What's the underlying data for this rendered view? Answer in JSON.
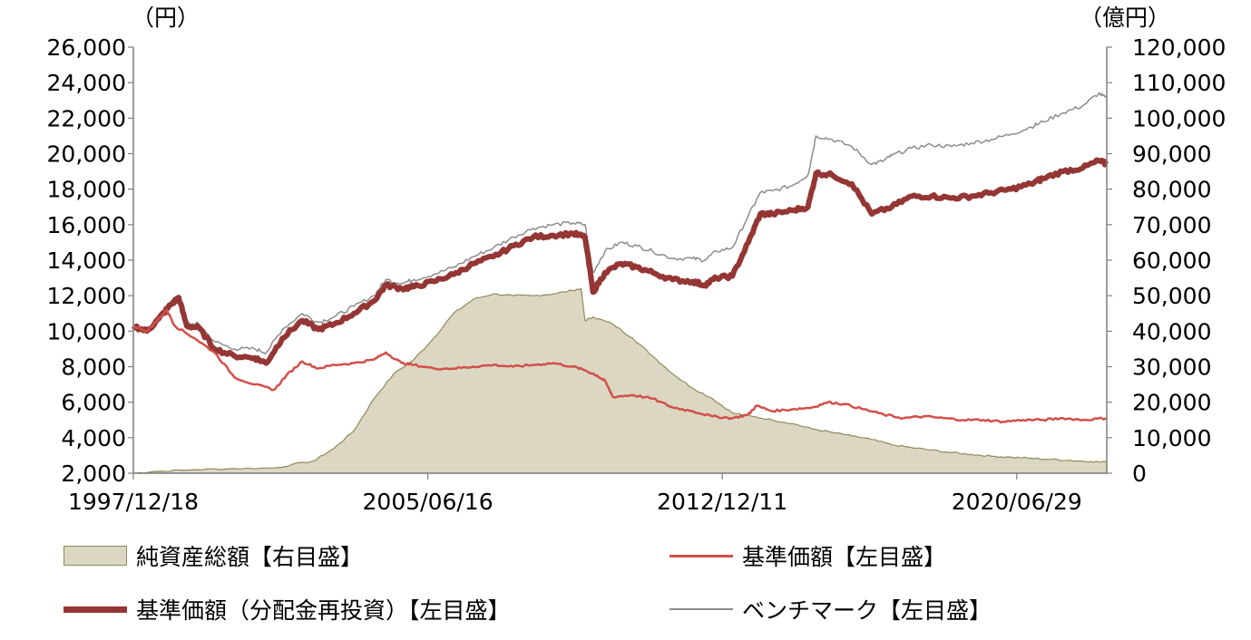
{
  "units": {
    "left": "（円）",
    "right": "（億円）"
  },
  "chart_data": {
    "type": "line",
    "x_tick_labels": [
      "1997/12/18",
      "2005/06/16",
      "2012/12/11",
      "2020/06/29"
    ],
    "y_left": {
      "ticks": [
        "2,000",
        "4,000",
        "6,000",
        "8,000",
        "10,000",
        "12,000",
        "14,000",
        "16,000",
        "18,000",
        "20,000",
        "22,000",
        "24,000",
        "26,000"
      ],
      "ylim": [
        2000,
        26000
      ]
    },
    "y_right": {
      "ticks": [
        "0",
        "10,000",
        "20,000",
        "30,000",
        "40,000",
        "50,000",
        "60,000",
        "70,000",
        "80,000",
        "90,000",
        "100,000",
        "110,000",
        "120,000"
      ],
      "ylim": [
        0,
        120000
      ]
    },
    "grid": false,
    "x_range": [
      1997.96,
      2022.4
    ],
    "series": [
      {
        "name": "純資産総額【右目盛】",
        "kind": "area",
        "axis": "right",
        "color": "#dbd7c2",
        "stroke": "#8f8a5c",
        "points": [
          [
            1997.96,
            0
          ],
          [
            1998.5,
            500
          ],
          [
            1999.5,
            1000
          ],
          [
            2000.5,
            1300
          ],
          [
            2001.5,
            1500
          ],
          [
            2002.5,
            3500
          ],
          [
            2003,
            7000
          ],
          [
            2003.5,
            12000
          ],
          [
            2004,
            21000
          ],
          [
            2004.5,
            28000
          ],
          [
            2005,
            32000
          ],
          [
            2005.5,
            38000
          ],
          [
            2006,
            45000
          ],
          [
            2006.5,
            49000
          ],
          [
            2007,
            50500
          ],
          [
            2007.5,
            50000
          ],
          [
            2008,
            50000
          ],
          [
            2008.5,
            50500
          ],
          [
            2009,
            51500
          ],
          [
            2009.2,
            52000
          ],
          [
            2009.3,
            43000
          ],
          [
            2009.5,
            44000
          ],
          [
            2010,
            42000
          ],
          [
            2010.5,
            38000
          ],
          [
            2011,
            33000
          ],
          [
            2011.5,
            28000
          ],
          [
            2012,
            24000
          ],
          [
            2012.5,
            21000
          ],
          [
            2013,
            17000
          ],
          [
            2013.5,
            16000
          ],
          [
            2014,
            15000
          ],
          [
            2014.5,
            14000
          ],
          [
            2015,
            12500
          ],
          [
            2015.5,
            11500
          ],
          [
            2016,
            10500
          ],
          [
            2016.5,
            9500
          ],
          [
            2017,
            8000
          ],
          [
            2017.5,
            7200
          ],
          [
            2018,
            6500
          ],
          [
            2018.5,
            5800
          ],
          [
            2019,
            5300
          ],
          [
            2019.5,
            4800
          ],
          [
            2020,
            4500
          ],
          [
            2020.5,
            4200
          ],
          [
            2021,
            3900
          ],
          [
            2021.5,
            3600
          ],
          [
            2022,
            3300
          ],
          [
            2022.4,
            3100
          ]
        ]
      },
      {
        "name": "基準価額【左目盛】",
        "kind": "line",
        "axis": "left",
        "color": "#d2504a",
        "width": 2.5,
        "points": [
          [
            1997.96,
            10300
          ],
          [
            1998.3,
            10000
          ],
          [
            1998.6,
            10700
          ],
          [
            1998.8,
            11200
          ],
          [
            1999.0,
            10300
          ],
          [
            1999.5,
            9600
          ],
          [
            2000.0,
            8800
          ],
          [
            2000.5,
            7400
          ],
          [
            2001.0,
            7000
          ],
          [
            2001.5,
            6700
          ],
          [
            2001.8,
            7500
          ],
          [
            2002.2,
            8300
          ],
          [
            2002.6,
            7900
          ],
          [
            2003.0,
            8100
          ],
          [
            2003.5,
            8200
          ],
          [
            2004.0,
            8400
          ],
          [
            2004.3,
            8800
          ],
          [
            2004.7,
            8200
          ],
          [
            2005.0,
            8100
          ],
          [
            2005.5,
            7900
          ],
          [
            2006.0,
            7900
          ],
          [
            2006.5,
            8000
          ],
          [
            2007.0,
            8100
          ],
          [
            2007.5,
            8000
          ],
          [
            2008.0,
            8100
          ],
          [
            2008.5,
            8200
          ],
          [
            2009.0,
            8000
          ],
          [
            2009.3,
            7800
          ],
          [
            2009.6,
            7500
          ],
          [
            2009.8,
            7200
          ],
          [
            2010.0,
            6300
          ],
          [
            2010.5,
            6400
          ],
          [
            2011.0,
            6200
          ],
          [
            2011.5,
            5700
          ],
          [
            2012.0,
            5500
          ],
          [
            2012.5,
            5200
          ],
          [
            2013.0,
            5100
          ],
          [
            2013.4,
            5300
          ],
          [
            2013.6,
            5800
          ],
          [
            2014.0,
            5500
          ],
          [
            2014.5,
            5600
          ],
          [
            2015.0,
            5700
          ],
          [
            2015.4,
            6000
          ],
          [
            2015.8,
            5900
          ],
          [
            2016.3,
            5600
          ],
          [
            2016.8,
            5300
          ],
          [
            2017.3,
            5100
          ],
          [
            2017.8,
            5200
          ],
          [
            2018.3,
            5100
          ],
          [
            2018.8,
            5000
          ],
          [
            2019.3,
            5000
          ],
          [
            2019.8,
            4900
          ],
          [
            2020.3,
            5000
          ],
          [
            2020.8,
            5000
          ],
          [
            2021.3,
            5100
          ],
          [
            2021.8,
            5000
          ],
          [
            2022.4,
            5100
          ]
        ]
      },
      {
        "name": "基準価額（分配金再投資）【左目盛】",
        "kind": "line",
        "axis": "left",
        "color": "#943634",
        "width": 6,
        "points": [
          [
            1997.96,
            10300
          ],
          [
            1998.3,
            10000
          ],
          [
            1998.6,
            10700
          ],
          [
            1998.9,
            11500
          ],
          [
            1999.1,
            11900
          ],
          [
            1999.3,
            10300
          ],
          [
            1999.6,
            10200
          ],
          [
            2000.0,
            9000
          ],
          [
            2000.5,
            8600
          ],
          [
            2001.0,
            8500
          ],
          [
            2001.3,
            8200
          ],
          [
            2001.7,
            9600
          ],
          [
            2002.2,
            10600
          ],
          [
            2002.6,
            10100
          ],
          [
            2003.0,
            10400
          ],
          [
            2003.5,
            11000
          ],
          [
            2004.0,
            11700
          ],
          [
            2004.3,
            12600
          ],
          [
            2004.7,
            12400
          ],
          [
            2005.0,
            12500
          ],
          [
            2005.5,
            12800
          ],
          [
            2006.0,
            13200
          ],
          [
            2006.5,
            13800
          ],
          [
            2007.0,
            14200
          ],
          [
            2007.5,
            14800
          ],
          [
            2008.0,
            15300
          ],
          [
            2008.5,
            15400
          ],
          [
            2009.0,
            15500
          ],
          [
            2009.3,
            15300
          ],
          [
            2009.5,
            12200
          ],
          [
            2009.8,
            13300
          ],
          [
            2010.2,
            13800
          ],
          [
            2010.6,
            13600
          ],
          [
            2011.0,
            13300
          ],
          [
            2011.5,
            12900
          ],
          [
            2012.0,
            12800
          ],
          [
            2012.3,
            12600
          ],
          [
            2012.6,
            13000
          ],
          [
            2013.0,
            13100
          ],
          [
            2013.4,
            15000
          ],
          [
            2013.7,
            16600
          ],
          [
            2014.0,
            16600
          ],
          [
            2014.5,
            16800
          ],
          [
            2014.9,
            17000
          ],
          [
            2015.1,
            18900
          ],
          [
            2015.5,
            18800
          ],
          [
            2016.0,
            18300
          ],
          [
            2016.5,
            16600
          ],
          [
            2017.0,
            17000
          ],
          [
            2017.5,
            17600
          ],
          [
            2018.0,
            17600
          ],
          [
            2018.5,
            17500
          ],
          [
            2019.0,
            17600
          ],
          [
            2019.5,
            17800
          ],
          [
            2020.0,
            18000
          ],
          [
            2020.5,
            18300
          ],
          [
            2020.8,
            18600
          ],
          [
            2021.3,
            19000
          ],
          [
            2021.8,
            19200
          ],
          [
            2022.2,
            19600
          ],
          [
            2022.4,
            19400
          ]
        ]
      },
      {
        "name": "ベンチマーク【左目盛】",
        "kind": "line",
        "axis": "left",
        "color": "#8c8c8c",
        "width": 1.5,
        "points": [
          [
            1997.96,
            10400
          ],
          [
            1998.3,
            10100
          ],
          [
            1998.6,
            10700
          ],
          [
            1998.9,
            11400
          ],
          [
            1999.1,
            11800
          ],
          [
            1999.3,
            10400
          ],
          [
            1999.6,
            10400
          ],
          [
            2000.0,
            9400
          ],
          [
            2000.5,
            9000
          ],
          [
            2001.0,
            9000
          ],
          [
            2001.3,
            8800
          ],
          [
            2001.7,
            10100
          ],
          [
            2002.2,
            11000
          ],
          [
            2002.6,
            10500
          ],
          [
            2003.0,
            10800
          ],
          [
            2003.5,
            11400
          ],
          [
            2004.0,
            12000
          ],
          [
            2004.3,
            12900
          ],
          [
            2004.7,
            12700
          ],
          [
            2005.0,
            12900
          ],
          [
            2005.5,
            13200
          ],
          [
            2006.0,
            13600
          ],
          [
            2006.5,
            14200
          ],
          [
            2007.0,
            14700
          ],
          [
            2007.5,
            15300
          ],
          [
            2008.0,
            15800
          ],
          [
            2008.5,
            16000
          ],
          [
            2009.0,
            16100
          ],
          [
            2009.3,
            16000
          ],
          [
            2009.5,
            13300
          ],
          [
            2009.8,
            14500
          ],
          [
            2010.2,
            15000
          ],
          [
            2010.6,
            14800
          ],
          [
            2011.0,
            14500
          ],
          [
            2011.5,
            14100
          ],
          [
            2012.0,
            14100
          ],
          [
            2012.3,
            14000
          ],
          [
            2012.6,
            14500
          ],
          [
            2013.0,
            14700
          ],
          [
            2013.4,
            16500
          ],
          [
            2013.7,
            17800
          ],
          [
            2014.0,
            17900
          ],
          [
            2014.5,
            18200
          ],
          [
            2014.9,
            18800
          ],
          [
            2015.1,
            21000
          ],
          [
            2015.5,
            20800
          ],
          [
            2016.0,
            20400
          ],
          [
            2016.5,
            19400
          ],
          [
            2016.8,
            19600
          ],
          [
            2017.0,
            19900
          ],
          [
            2017.5,
            20300
          ],
          [
            2018.0,
            20500
          ],
          [
            2018.5,
            20400
          ],
          [
            2019.0,
            20600
          ],
          [
            2019.5,
            20800
          ],
          [
            2020.0,
            21100
          ],
          [
            2020.5,
            21500
          ],
          [
            2020.8,
            21800
          ],
          [
            2021.3,
            22300
          ],
          [
            2021.8,
            22700
          ],
          [
            2022.2,
            23400
          ],
          [
            2022.4,
            23100
          ]
        ]
      }
    ]
  }
}
